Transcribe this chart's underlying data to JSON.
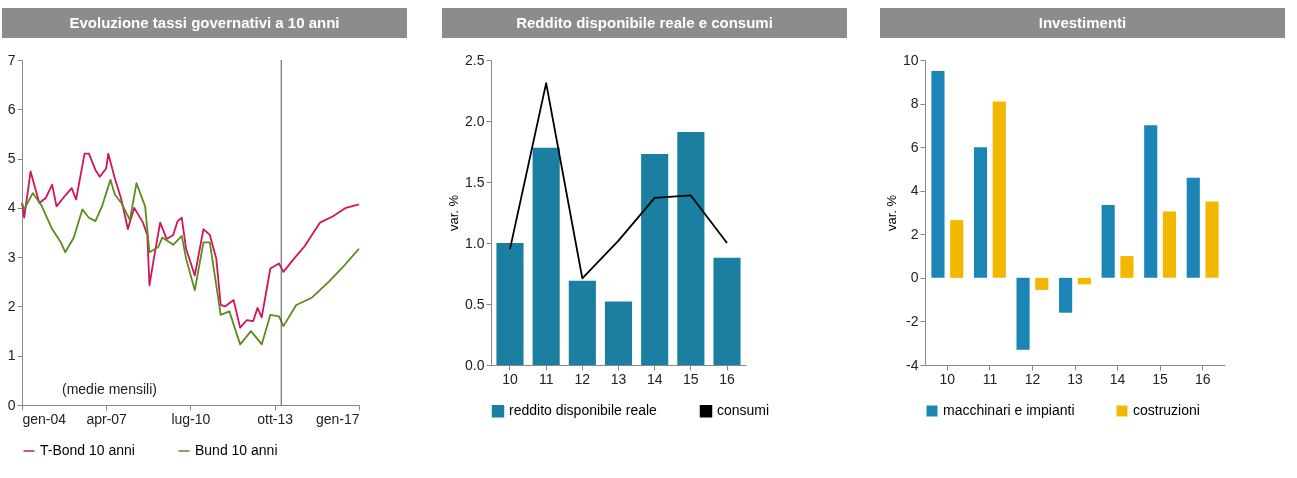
{
  "chart_data": [
    {
      "type": "line",
      "title": "Evoluzione tassi governativi a 10 anni",
      "xlim": [
        "2004-01",
        "2017-01"
      ],
      "xticks": [
        {
          "value": "2004-01",
          "label": "gen-04"
        },
        {
          "value": "2007-04",
          "label": "apr-07"
        },
        {
          "value": "2010-07",
          "label": "lug-10"
        },
        {
          "value": "2013-10",
          "label": "ott-13"
        },
        {
          "value": "2017-01",
          "label": "gen-17"
        }
      ],
      "ylim": [
        0,
        7
      ],
      "yticks": [
        0,
        1,
        2,
        3,
        4,
        5,
        6,
        7
      ],
      "grid": false,
      "legend": "bottom",
      "annotations": [
        "(medie mensili)"
      ],
      "ref_lines": [
        {
          "axis": "x",
          "value": "2014-01",
          "color": "#555555"
        }
      ],
      "series": [
        {
          "name": "T-Bond 10 anni",
          "color": "#d2145a",
          "x": [
            "2004-01",
            "2004-02",
            "2004-05",
            "2004-09",
            "2004-12",
            "2005-03",
            "2005-05",
            "2005-09",
            "2005-12",
            "2006-02",
            "2006-06",
            "2006-08",
            "2006-11",
            "2007-01",
            "2007-04",
            "2007-05",
            "2007-08",
            "2007-11",
            "2008-02",
            "2008-05",
            "2008-09",
            "2008-11",
            "2008-12",
            "2009-02",
            "2009-05",
            "2009-08",
            "2009-11",
            "2010-01",
            "2010-03",
            "2010-05",
            "2010-09",
            "2011-01",
            "2011-04",
            "2011-07",
            "2011-09",
            "2011-11",
            "2012-03",
            "2012-06",
            "2012-09",
            "2012-12",
            "2013-02",
            "2013-04",
            "2013-08",
            "2013-12",
            "2014-02",
            "2014-07",
            "2014-12",
            "2015-04",
            "2015-07",
            "2016-01",
            "2016-07",
            "2017-01"
          ],
          "values": [
            4.1,
            3.8,
            4.74,
            4.1,
            4.2,
            4.47,
            4.03,
            4.25,
            4.4,
            4.17,
            5.1,
            5.1,
            4.77,
            4.63,
            4.8,
            5.1,
            4.6,
            4.17,
            3.57,
            4.0,
            3.7,
            3.45,
            2.43,
            2.97,
            3.7,
            3.37,
            3.45,
            3.73,
            3.8,
            3.17,
            2.63,
            3.57,
            3.45,
            2.97,
            2.03,
            2.0,
            2.13,
            1.57,
            1.72,
            1.7,
            1.97,
            1.78,
            2.77,
            2.87,
            2.7,
            2.97,
            3.23,
            3.5,
            3.7,
            3.83,
            4.0,
            4.07
          ]
        },
        {
          "name": "Bund 10 anni",
          "color": "#5b8c1e",
          "x": [
            "2004-01",
            "2004-02",
            "2004-06",
            "2004-10",
            "2005-03",
            "2005-07",
            "2005-09",
            "2006-01",
            "2006-05",
            "2006-08",
            "2006-11",
            "2007-02",
            "2007-06",
            "2007-08",
            "2007-11",
            "2008-03",
            "2008-06",
            "2008-10",
            "2008-12",
            "2009-04",
            "2009-06",
            "2009-11",
            "2010-03",
            "2010-05",
            "2010-09",
            "2011-01",
            "2011-04",
            "2011-09",
            "2012-01",
            "2012-06",
            "2012-11",
            "2013-04",
            "2013-08",
            "2013-12",
            "2014-02",
            "2014-08",
            "2015-03",
            "2015-11",
            "2016-05",
            "2017-01"
          ],
          "values": [
            4.1,
            3.97,
            4.3,
            4.05,
            3.57,
            3.3,
            3.1,
            3.4,
            3.97,
            3.8,
            3.73,
            4.03,
            4.57,
            4.27,
            4.1,
            3.75,
            4.5,
            4.03,
            3.1,
            3.2,
            3.4,
            3.25,
            3.43,
            2.97,
            2.33,
            3.3,
            3.3,
            1.83,
            1.9,
            1.23,
            1.5,
            1.23,
            1.83,
            1.8,
            1.6,
            2.03,
            2.17,
            2.5,
            2.77,
            3.17
          ]
        }
      ]
    },
    {
      "type": "bar",
      "title": "Reddito disponibile reale  e consumi",
      "ylabel": "var. %",
      "categories": [
        "10",
        "11",
        "12",
        "13",
        "14",
        "15",
        "16"
      ],
      "ylim": [
        0,
        2.5
      ],
      "yticks": [
        {
          "value": 0,
          "label": "0.0"
        },
        {
          "value": 0.5,
          "label": "0.5"
        },
        {
          "value": 1,
          "label": "1.0"
        },
        {
          "value": 1.5,
          "label": "1.5"
        },
        {
          "value": 2,
          "label": "2.0"
        },
        {
          "value": 2.5,
          "label": "2.5"
        }
      ],
      "grid": false,
      "legend": "bottom",
      "series": [
        {
          "name": "reddito disponibile reale",
          "color": "#1a7fa0",
          "values": [
            1.0,
            1.78,
            0.69,
            0.52,
            1.73,
            1.91,
            0.88
          ]
        },
        {
          "name": "consumi",
          "type": "line",
          "color": "#000000",
          "values": [
            0.95,
            2.31,
            0.71,
            1.02,
            1.37,
            1.39,
            1.0
          ]
        }
      ]
    },
    {
      "type": "bar",
      "title": "Investimenti",
      "ylabel": "var. %",
      "categories": [
        "10",
        "11",
        "12",
        "13",
        "14",
        "15",
        "16"
      ],
      "ylim": [
        -4,
        10
      ],
      "yticks": [
        -4,
        -2,
        0,
        2,
        4,
        6,
        8,
        10
      ],
      "grid": false,
      "legend": "bottom",
      "series": [
        {
          "name": "macchinari e impianti",
          "color": "#1b86b5",
          "values": [
            9.5,
            6.0,
            -3.3,
            -1.6,
            3.35,
            7.0,
            4.6
          ]
        },
        {
          "name": "costruzioni",
          "color": "#f2b800",
          "values": [
            2.65,
            8.1,
            -0.55,
            -0.3,
            1.0,
            3.05,
            3.5
          ]
        }
      ]
    }
  ]
}
